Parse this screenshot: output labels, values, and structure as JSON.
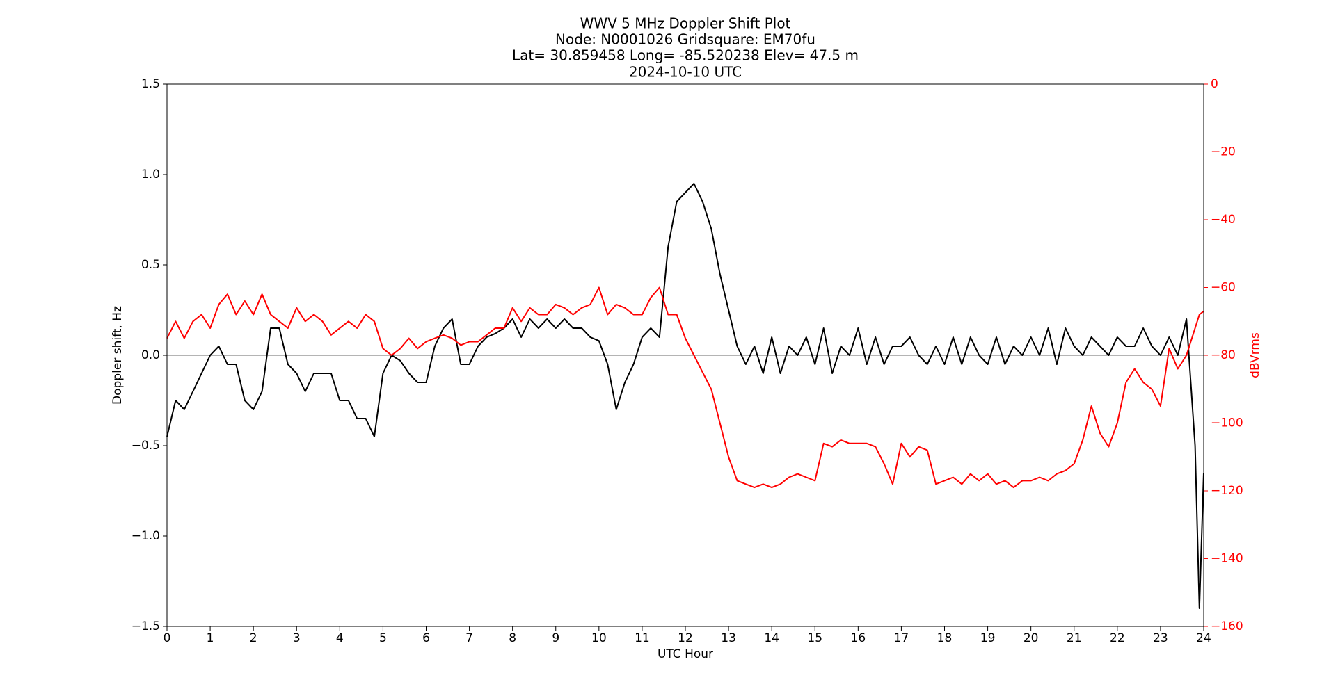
{
  "chart_data": {
    "type": "line",
    "title": [
      "WWV 5 MHz Doppler Shift Plot",
      "Node:  N0001026     Gridsquare:  EM70fu",
      "Lat= 30.859458    Long= -85.520238    Elev= 47.5 m",
      "2024-10-10  UTC"
    ],
    "xlabel": "UTC Hour",
    "ylabel": "Doppler shift, Hz",
    "y2label": "dBVrms",
    "xlim": [
      0,
      24
    ],
    "xticks": [
      0,
      1,
      2,
      3,
      4,
      5,
      6,
      7,
      8,
      9,
      10,
      11,
      12,
      13,
      14,
      15,
      16,
      17,
      18,
      19,
      20,
      21,
      22,
      23,
      24
    ],
    "ylim": [
      -1.5,
      1.5
    ],
    "yticks": [
      {
        "value": -1.5,
        "label": "−1.5"
      },
      {
        "value": -1.0,
        "label": "−1.0"
      },
      {
        "value": -0.5,
        "label": "−0.5"
      },
      {
        "value": 0,
        "label": "0.0"
      },
      {
        "value": 0.5,
        "label": "0.5"
      },
      {
        "value": 1.0,
        "label": "1.0"
      },
      {
        "value": 1.5,
        "label": "1.5"
      }
    ],
    "y2lim": [
      -160,
      0
    ],
    "y2ticks": [
      {
        "value": -160,
        "label": "−160"
      },
      {
        "value": -140,
        "label": "−140"
      },
      {
        "value": -120,
        "label": "−120"
      },
      {
        "value": -100,
        "label": "−100"
      },
      {
        "value": -80,
        "label": "−80"
      },
      {
        "value": -60,
        "label": "−60"
      },
      {
        "value": -40,
        "label": "−40"
      },
      {
        "value": -20,
        "label": "−20"
      },
      0
    ],
    "y2color": "#ff0000",
    "reference_line": 0,
    "x": [
      0,
      0.2,
      0.4,
      0.6,
      0.8,
      1,
      1.2,
      1.4,
      1.6,
      1.8,
      2,
      2.2,
      2.4,
      2.6,
      2.8,
      3,
      3.2,
      3.4,
      3.6,
      3.8,
      4,
      4.2,
      4.4,
      4.6,
      4.8,
      5,
      5.2,
      5.4,
      5.6,
      5.8,
      6,
      6.2,
      6.4,
      6.6,
      6.8,
      7,
      7.2,
      7.4,
      7.6,
      7.8,
      8,
      8.2,
      8.4,
      8.6,
      8.8,
      9,
      9.2,
      9.4,
      9.6,
      9.8,
      10,
      10.2,
      10.4,
      10.6,
      10.8,
      11,
      11.2,
      11.4,
      11.6,
      11.8,
      12,
      12.2,
      12.4,
      12.6,
      12.8,
      13,
      13.2,
      13.4,
      13.6,
      13.8,
      14,
      14.2,
      14.4,
      14.6,
      14.8,
      15,
      15.2,
      15.4,
      15.6,
      15.8,
      16,
      16.2,
      16.4,
      16.6,
      16.8,
      17,
      17.2,
      17.4,
      17.6,
      17.8,
      18,
      18.2,
      18.4,
      18.6,
      18.8,
      19,
      19.2,
      19.4,
      19.6,
      19.8,
      20,
      20.2,
      20.4,
      20.6,
      20.8,
      21,
      21.2,
      21.4,
      21.6,
      21.8,
      22,
      22.2,
      22.4,
      22.6,
      22.8,
      23,
      23.2,
      23.4,
      23.6,
      23.8,
      23.9,
      24
    ],
    "series": [
      {
        "color": "#000000",
        "axis": "y",
        "values": [
          -0.45,
          -0.25,
          -0.3,
          -0.2,
          -0.1,
          0.0,
          0.05,
          -0.05,
          -0.05,
          -0.25,
          -0.3,
          -0.2,
          0.15,
          0.15,
          -0.05,
          -0.1,
          -0.2,
          -0.1,
          -0.1,
          -0.1,
          -0.25,
          -0.25,
          -0.35,
          -0.35,
          -0.45,
          -0.1,
          0.0,
          -0.03,
          -0.1,
          -0.15,
          -0.15,
          0.05,
          0.15,
          0.2,
          -0.05,
          -0.05,
          0.05,
          0.1,
          0.12,
          0.15,
          0.2,
          0.1,
          0.2,
          0.15,
          0.2,
          0.15,
          0.2,
          0.15,
          0.15,
          0.1,
          0.08,
          -0.05,
          -0.3,
          -0.15,
          -0.05,
          0.1,
          0.15,
          0.1,
          0.6,
          0.85,
          0.9,
          0.95,
          0.85,
          0.7,
          0.45,
          0.25,
          0.05,
          -0.05,
          0.05,
          -0.1,
          0.1,
          -0.1,
          0.05,
          0.0,
          0.1,
          -0.05,
          0.15,
          -0.1,
          0.05,
          0.0,
          0.15,
          -0.05,
          0.1,
          -0.05,
          0.05,
          0.05,
          0.1,
          0.0,
          -0.05,
          0.05,
          -0.05,
          0.1,
          -0.05,
          0.1,
          0.0,
          -0.05,
          0.1,
          -0.05,
          0.05,
          0.0,
          0.1,
          0.0,
          0.15,
          -0.05,
          0.15,
          0.05,
          0.0,
          0.1,
          0.05,
          0.0,
          0.1,
          0.05,
          0.05,
          0.15,
          0.05,
          0.0,
          0.1,
          0.0,
          0.2,
          -0.5,
          -1.4,
          -0.65
        ]
      },
      {
        "color": "#ff0000",
        "axis": "y2",
        "values": [
          -75,
          -70,
          -75,
          -70,
          -68,
          -72,
          -65,
          -62,
          -68,
          -64,
          -68,
          -62,
          -68,
          -70,
          -72,
          -66,
          -70,
          -68,
          -70,
          -74,
          -72,
          -70,
          -72,
          -68,
          -70,
          -78,
          -80,
          -78,
          -75,
          -78,
          -76,
          -75,
          -74,
          -75,
          -77,
          -76,
          -76,
          -74,
          -72,
          -72,
          -66,
          -70,
          -66,
          -68,
          -68,
          -65,
          -66,
          -68,
          -66,
          -65,
          -60,
          -68,
          -65,
          -66,
          -68,
          -68,
          -63,
          -60,
          -68,
          -68,
          -75,
          -80,
          -85,
          -90,
          -100,
          -110,
          -117,
          -118,
          -119,
          -118,
          -119,
          -118,
          -116,
          -115,
          -116,
          -117,
          -106,
          -107,
          -105,
          -106,
          -106,
          -106,
          -107,
          -112,
          -118,
          -106,
          -110,
          -107,
          -108,
          -118,
          -117,
          -116,
          -118,
          -115,
          -117,
          -115,
          -118,
          -117,
          -119,
          -117,
          -117,
          -116,
          -117,
          -115,
          -114,
          -112,
          -105,
          -95,
          -103,
          -107,
          -100,
          -88,
          -84,
          -88,
          -90,
          -95,
          -78,
          -84,
          -80,
          -72,
          -68,
          -67
        ]
      }
    ]
  }
}
